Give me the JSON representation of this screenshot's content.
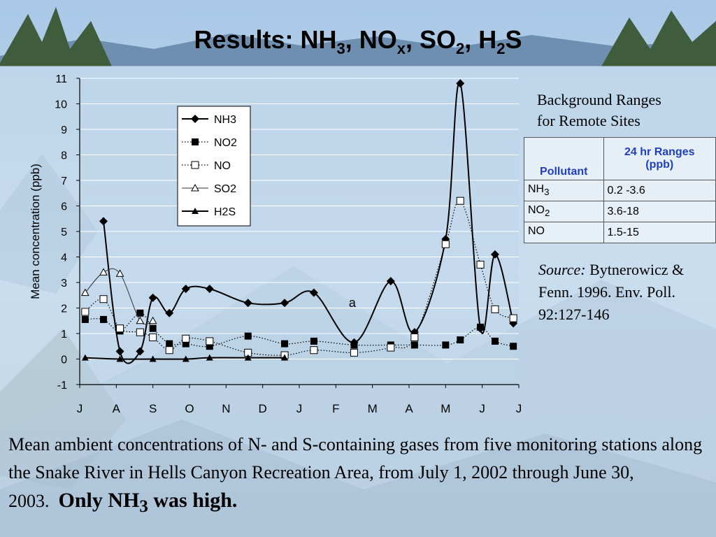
{
  "slide": {
    "title_parts": [
      "Results: NH",
      "3",
      ", NO",
      "x",
      ", SO",
      "2",
      ", H",
      "2",
      "S"
    ]
  },
  "ranges_panel": {
    "title_line1": "Background Ranges",
    "title_line2": "for Remote Sites",
    "header_pollutant": "Pollutant",
    "header_range_line1": "24 hr Ranges",
    "header_range_line2": "(ppb)",
    "rows": [
      {
        "pollutant": "NH",
        "sub": "3",
        "range": "0.2 -3.6"
      },
      {
        "pollutant": "NO",
        "sub": "2",
        "range": "3.6-18"
      },
      {
        "pollutant": "NO",
        "sub": "",
        "range": "1.5-15"
      }
    ]
  },
  "source": {
    "label": "Source:",
    "text": " Bytnerowicz & Fenn. 1996. Env. Poll. 92:127-146"
  },
  "caption": {
    "text": "Mean ambient concentrations of N- and S-containing gases from five monitoring stations along the Snake River in Hells Canyon Recreation Area, from July 1, 2002 through June 30, 2003.",
    "emph_pre": "Only NH",
    "emph_sub": "3",
    "emph_post": " was high."
  },
  "colors": {
    "sky": "#b9d3ea",
    "mountain": "#8fb1cf",
    "tree": "#3d5a3a",
    "accent_blue": "#1f3fbf"
  },
  "chart_data": {
    "type": "line",
    "ylabel": "Mean concentration (ppb)",
    "xlabel": "",
    "ylim": [
      -1,
      11
    ],
    "yticks": [
      -1,
      0,
      1,
      2,
      3,
      4,
      5,
      6,
      7,
      8,
      9,
      10,
      11
    ],
    "xlim": [
      0,
      12
    ],
    "x_tick_labels": [
      "J",
      "A",
      "S",
      "O",
      "N",
      "D",
      "J",
      "F",
      "M",
      "A",
      "M",
      "J",
      "J"
    ],
    "grid": true,
    "legend_position": "top-center",
    "annotation": {
      "text": "a",
      "x": 7.45,
      "y": 2.2
    },
    "series": [
      {
        "name": "NH3",
        "marker": "diamond",
        "line": "solid",
        "points": [
          [
            0.65,
            5.4
          ],
          [
            1.1,
            0.3
          ],
          [
            1.65,
            0.3
          ],
          [
            2.0,
            2.4
          ],
          [
            2.45,
            1.8
          ],
          [
            2.9,
            2.75
          ],
          [
            3.55,
            2.75
          ],
          [
            4.6,
            2.2
          ],
          [
            5.6,
            2.2
          ],
          [
            6.4,
            2.6
          ],
          [
            7.5,
            0.65
          ],
          [
            8.5,
            3.05
          ],
          [
            9.15,
            1.05
          ],
          [
            10.0,
            4.7
          ],
          [
            10.4,
            10.8
          ],
          [
            10.95,
            1.2
          ],
          [
            11.35,
            4.1
          ],
          [
            11.85,
            1.4
          ]
        ]
      },
      {
        "name": "NO2",
        "marker": "square-filled",
        "line": "dotted",
        "points": [
          [
            0.15,
            1.55
          ],
          [
            0.65,
            1.55
          ],
          [
            1.1,
            1.1
          ],
          [
            1.65,
            1.8
          ],
          [
            2.0,
            1.2
          ],
          [
            2.45,
            0.6
          ],
          [
            2.9,
            0.6
          ],
          [
            3.55,
            0.5
          ],
          [
            4.6,
            0.9
          ],
          [
            5.6,
            0.6
          ],
          [
            6.4,
            0.7
          ],
          [
            7.5,
            0.55
          ],
          [
            8.5,
            0.55
          ],
          [
            9.15,
            0.55
          ],
          [
            10.0,
            0.55
          ],
          [
            10.4,
            0.75
          ],
          [
            10.95,
            1.25
          ],
          [
            11.35,
            0.7
          ],
          [
            11.85,
            0.5
          ]
        ]
      },
      {
        "name": "NO",
        "marker": "square-open",
        "line": "dotted",
        "points": [
          [
            0.15,
            1.85
          ],
          [
            0.65,
            2.35
          ],
          [
            1.1,
            1.2
          ],
          [
            1.65,
            1.05
          ],
          [
            2.0,
            0.85
          ],
          [
            2.45,
            0.35
          ],
          [
            2.9,
            0.8
          ],
          [
            3.55,
            0.7
          ],
          [
            4.6,
            0.25
          ],
          [
            5.6,
            0.15
          ],
          [
            6.4,
            0.35
          ],
          [
            7.5,
            0.25
          ],
          [
            8.5,
            0.45
          ],
          [
            9.15,
            0.85
          ],
          [
            10.0,
            4.5
          ],
          [
            10.4,
            6.2
          ],
          [
            10.95,
            3.7
          ],
          [
            11.35,
            1.95
          ],
          [
            11.85,
            1.6
          ]
        ]
      },
      {
        "name": "SO2",
        "marker": "triangle-open",
        "line": "thin",
        "points": [
          [
            0.15,
            2.6
          ],
          [
            0.65,
            3.4
          ],
          [
            1.1,
            3.35
          ],
          [
            1.65,
            1.5
          ],
          [
            2.0,
            1.5
          ]
        ]
      },
      {
        "name": "H2S",
        "marker": "triangle-filled",
        "line": "solid",
        "points": [
          [
            0.15,
            0.05
          ],
          [
            1.1,
            0.0
          ],
          [
            2.0,
            0.0
          ],
          [
            2.9,
            0.0
          ],
          [
            3.55,
            0.05
          ],
          [
            4.6,
            0.05
          ],
          [
            5.6,
            0.05
          ]
        ]
      }
    ]
  }
}
